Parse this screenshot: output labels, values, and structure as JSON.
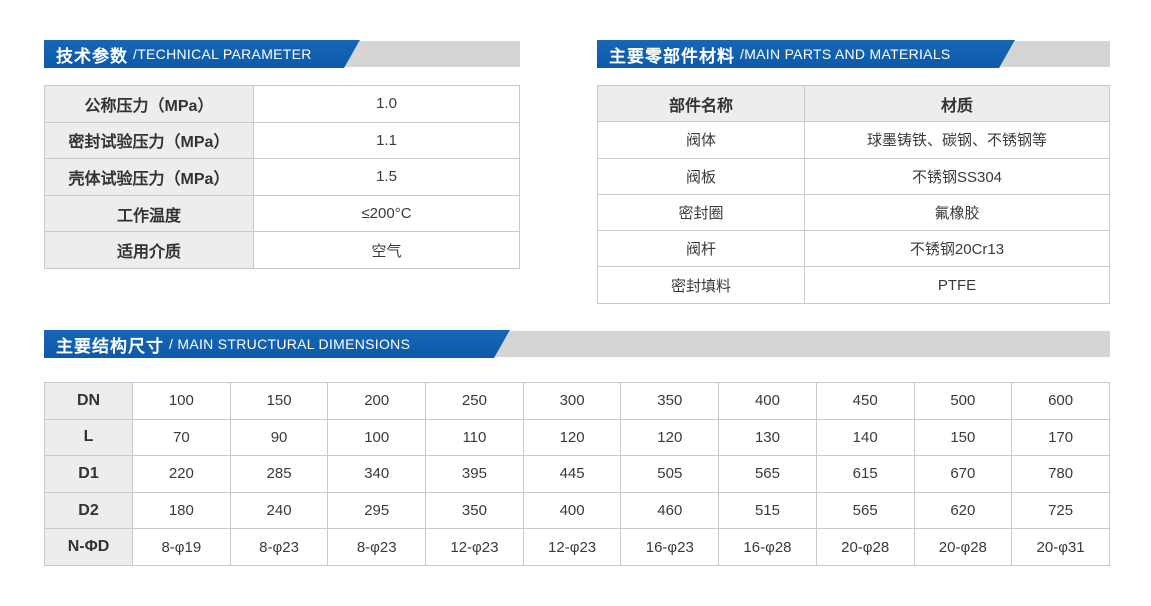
{
  "colors": {
    "banner_blue": "#0d59aa",
    "banner_blue_light": "#1767b6",
    "banner_gray": "#d5d5d5",
    "table_border": "#c9c9c9",
    "header_cell_bg": "#ededed",
    "text": "#333333"
  },
  "sections": {
    "technical": {
      "title_zh": "技术参数",
      "title_en": "/TECHNICAL PARAMETER",
      "rows": [
        {
          "label": "公称压力（MPa）",
          "value": "1.0"
        },
        {
          "label": "密封试验压力（MPa）",
          "value": "1.1"
        },
        {
          "label": "壳体试验压力（MPa）",
          "value": "1.5"
        },
        {
          "label": "工作温度",
          "value": "≤200°C"
        },
        {
          "label": "适用介质",
          "value": "空气"
        }
      ]
    },
    "materials": {
      "title_zh": "主要零部件材料",
      "title_en": "/MAIN PARTS AND MATERIALS",
      "headers": [
        "部件名称",
        "材质"
      ],
      "rows": [
        {
          "part": "阀体",
          "material": "球墨铸铁、碳钢、不锈钢等"
        },
        {
          "part": "阀板",
          "material": "不锈钢SS304"
        },
        {
          "part": "密封圈",
          "material": "氟橡胶"
        },
        {
          "part": "阀杆",
          "material": "不锈钢20Cr13"
        },
        {
          "part": "密封填料",
          "material": "PTFE"
        }
      ]
    },
    "dimensions": {
      "title_zh": "主要结构尺寸",
      "title_en": "/ MAIN STRUCTURAL DIMENSIONS",
      "rows": [
        {
          "label": "DN",
          "values": [
            "100",
            "150",
            "200",
            "250",
            "300",
            "350",
            "400",
            "450",
            "500",
            "600"
          ]
        },
        {
          "label": "L",
          "values": [
            "70",
            "90",
            "100",
            "110",
            "120",
            "120",
            "130",
            "140",
            "150",
            "170"
          ]
        },
        {
          "label": "D1",
          "values": [
            "220",
            "285",
            "340",
            "395",
            "445",
            "505",
            "565",
            "615",
            "670",
            "780"
          ]
        },
        {
          "label": "D2",
          "values": [
            "180",
            "240",
            "295",
            "350",
            "400",
            "460",
            "515",
            "565",
            "620",
            "725"
          ]
        },
        {
          "label": "N-ΦD",
          "values": [
            "8-φ19",
            "8-φ23",
            "8-φ23",
            "12-φ23",
            "12-φ23",
            "16-φ23",
            "16-φ28",
            "20-φ28",
            "20-φ28",
            "20-φ31"
          ]
        }
      ]
    }
  }
}
